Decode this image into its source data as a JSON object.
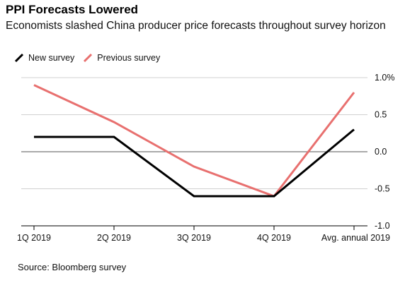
{
  "title": "PPI Forecasts Lowered",
  "subtitle": "Economists slashed China producer price forecasts throughout survey horizon",
  "source": "Source: Bloomberg survey",
  "chart_data": {
    "type": "line",
    "categories": [
      "1Q 2019",
      "2Q 2019",
      "3Q 2019",
      "4Q 2019",
      "Avg. annual 2019"
    ],
    "series": [
      {
        "name": "New survey",
        "color": "#000000",
        "values": [
          0.2,
          0.2,
          -0.6,
          -0.6,
          0.3
        ]
      },
      {
        "name": "Previous survey",
        "color": "#e8706f",
        "values": [
          0.9,
          0.4,
          -0.2,
          -0.6,
          0.8
        ]
      }
    ],
    "ylim": [
      -1.0,
      1.0
    ],
    "yticks": [
      {
        "value": 1.0,
        "label": "1.0%"
      },
      {
        "value": 0.5,
        "label": "0.5"
      },
      {
        "value": 0.0,
        "label": "0.0"
      },
      {
        "value": -0.5,
        "label": "-0.5"
      },
      {
        "value": -1.0,
        "label": "-1.0"
      }
    ],
    "y_axis_position": "right",
    "grid": true,
    "legend_position": "top-left"
  }
}
